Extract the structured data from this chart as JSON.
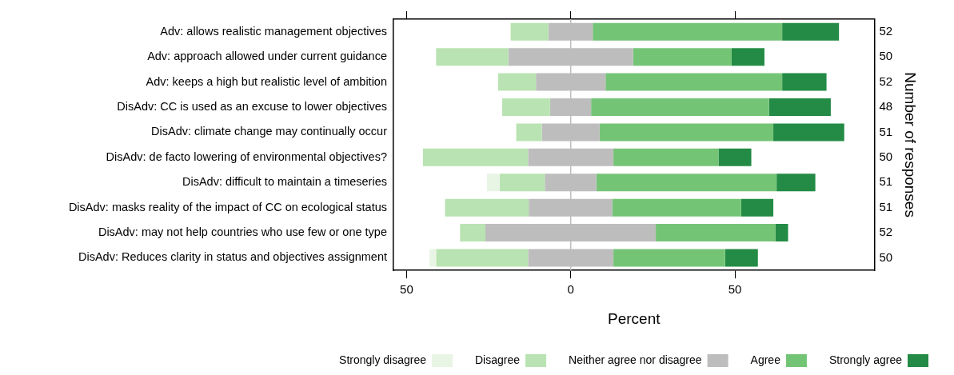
{
  "chart_data": {
    "type": "bar",
    "orientation": "horizontal",
    "xlabel": "Percent",
    "y2label": "Number of responses",
    "categories": [
      "Adv: allows realistic management objectives",
      "Adv: approach allowed under current guidance",
      "Adv: keeps a high but realistic level of ambition",
      "DisAdv: CC is used as an excuse to lower objectives",
      "DisAdv: climate change may continually occur",
      "DisAdv: de facto lowering of environmental objectives?",
      "DisAdv: difficult to maintain a timeseries",
      "DisAdv: masks reality of the impact of CC on ecological status",
      "DisAdv: may not help countries who use few or one type",
      "DisAdv: Reduces clarity in status and objectives assignment"
    ],
    "y2_categories": [
      "52",
      "50",
      "52",
      "48",
      "51",
      "50",
      "51",
      "51",
      "52",
      "50"
    ],
    "series": [
      {
        "name": "Strongly disagree",
        "color": "#e9f5e4",
        "base": [
          null,
          null,
          null,
          null,
          null,
          null,
          -25.5,
          null,
          null,
          -43
        ],
        "values": [
          null,
          null,
          null,
          null,
          null,
          null,
          3.9,
          null,
          null,
          2
        ]
      },
      {
        "name": "Disagree",
        "color": "#b9e3b2",
        "base": [
          -18.3,
          -41,
          -22.1,
          -20.9,
          -16.6,
          -45,
          -21.6,
          -38.3,
          -33.7,
          -41
        ],
        "values": [
          11.5,
          22,
          11.5,
          14.6,
          7.8,
          32,
          13.7,
          25.5,
          7.7,
          28
        ]
      },
      {
        "name": "Neither agree nor disagree",
        "color": "#bdbdbd",
        "base": [
          -6.8,
          -19,
          -10.6,
          -6.3,
          -8.8,
          -13,
          -7.9,
          -12.8,
          -26,
          -13
        ],
        "values": [
          13.5,
          38,
          21.2,
          12.5,
          17.6,
          26,
          15.7,
          25.5,
          51.9,
          26
        ]
      },
      {
        "name": "Agree",
        "color": "#74c476",
        "base": [
          6.7,
          19,
          10.6,
          6.2,
          8.8,
          13,
          7.8,
          12.7,
          25.9,
          13
        ],
        "values": [
          57.7,
          30,
          53.8,
          54.2,
          52.9,
          32,
          54.9,
          39.2,
          36.5,
          34
        ]
      },
      {
        "name": "Strongly agree",
        "color": "#238b45",
        "base": [
          64.4,
          49,
          64.4,
          60.4,
          61.7,
          45,
          62.7,
          51.9,
          62.4,
          47
        ],
        "values": [
          17.3,
          10,
          13.5,
          18.8,
          21.6,
          10,
          11.8,
          9.8,
          3.8,
          10
        ]
      }
    ],
    "xlim": [
      -54,
      92.5
    ],
    "xticks": [
      {
        "value": -50,
        "label": "50"
      },
      0,
      50
    ],
    "ref_lines": [
      {
        "axis": "x",
        "value": 0,
        "color": "#bdbdbd"
      }
    ],
    "grid": false,
    "legend": "bottom right"
  }
}
